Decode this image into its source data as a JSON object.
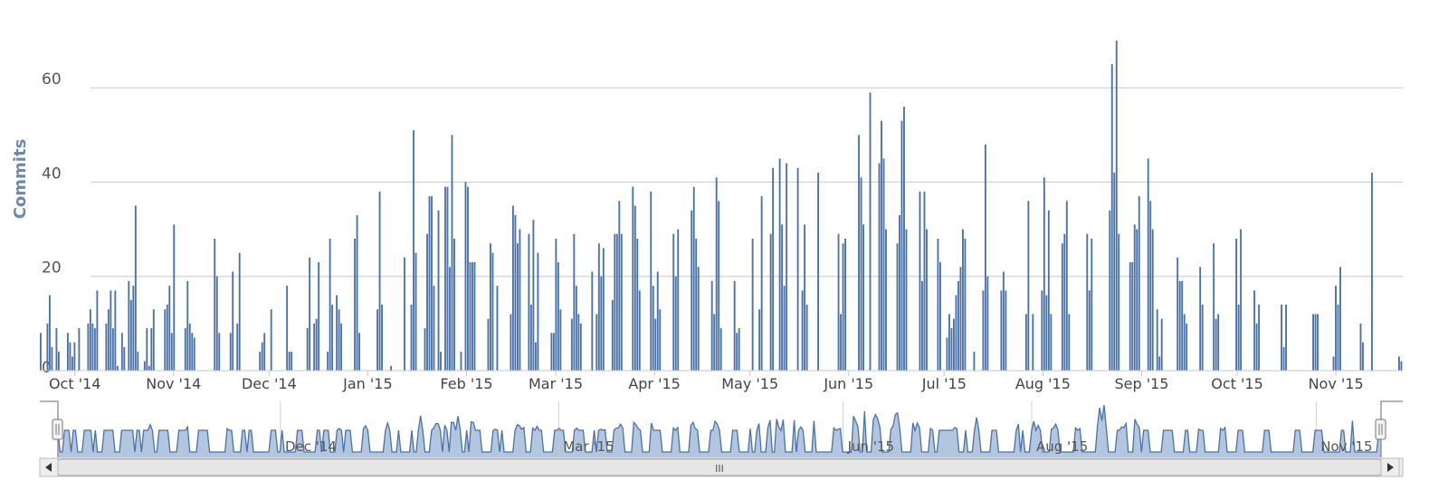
{
  "chart_data": {
    "type": "bar",
    "title": "",
    "xlabel": "",
    "ylabel": "Commits",
    "ylim": [
      0,
      70
    ],
    "yticks": [
      0,
      20,
      40,
      60
    ],
    "grid": true,
    "legend": "none",
    "color": "#4a72a8",
    "x_start": "2014-09-20",
    "x_end": "2015-11-22",
    "xticks": [
      {
        "date": "2014-10-01",
        "label": "Oct '14"
      },
      {
        "date": "2014-11-01",
        "label": "Nov '14"
      },
      {
        "date": "2014-12-01",
        "label": "Dec '14"
      },
      {
        "date": "2015-01-01",
        "label": "Jan '15"
      },
      {
        "date": "2015-02-01",
        "label": "Feb '15"
      },
      {
        "date": "2015-03-01",
        "label": "Mar '15"
      },
      {
        "date": "2015-04-01",
        "label": "Apr '15"
      },
      {
        "date": "2015-05-01",
        "label": "May '15"
      },
      {
        "date": "2015-06-01",
        "label": "Jun '15"
      },
      {
        "date": "2015-07-01",
        "label": "Jul '15"
      },
      {
        "date": "2015-08-01",
        "label": "Aug '15"
      },
      {
        "date": "2015-09-01",
        "label": "Sep '15"
      },
      {
        "date": "2015-10-01",
        "label": "Oct '15"
      },
      {
        "date": "2015-11-01",
        "label": "Nov '15"
      }
    ],
    "series": [
      {
        "values": [
          8,
          0,
          0,
          10,
          16,
          5,
          0,
          9,
          4,
          0,
          0,
          0,
          8,
          6,
          3,
          6,
          0,
          9,
          0,
          0,
          0,
          10,
          13,
          10,
          9,
          17,
          0,
          0,
          0,
          10,
          13,
          17,
          9,
          17,
          1,
          0,
          8,
          5,
          0,
          19,
          15,
          18,
          35,
          4,
          0,
          0,
          2,
          9,
          1,
          9,
          13,
          0,
          0,
          0,
          0,
          13,
          14,
          18,
          8,
          31,
          0,
          0,
          0,
          0,
          9,
          19,
          10,
          8,
          7,
          0,
          0,
          0,
          0,
          0,
          0,
          0,
          0,
          28,
          20,
          8,
          0,
          0,
          0,
          0,
          8,
          21,
          0,
          10,
          25,
          0,
          0,
          0,
          0,
          0,
          0,
          0,
          0,
          4,
          6,
          8,
          0,
          0,
          13,
          0,
          0,
          0,
          0,
          0,
          0,
          18,
          4,
          4,
          0,
          0,
          0,
          0,
          0,
          0,
          9,
          24,
          0,
          10,
          11,
          23,
          0,
          0,
          0,
          4,
          28,
          14,
          0,
          16,
          13,
          10,
          0,
          0,
          0,
          0,
          0,
          28,
          33,
          8,
          0,
          0,
          0,
          0,
          0,
          0,
          0,
          13,
          38,
          14,
          0,
          0,
          0,
          1,
          0,
          0,
          0,
          0,
          0,
          24,
          0,
          0,
          14,
          51,
          25,
          0,
          0,
          0,
          9,
          29,
          37,
          37,
          18,
          0,
          34,
          4,
          0,
          39,
          39,
          22,
          50,
          28,
          0,
          0,
          4,
          0,
          40,
          39,
          23,
          23,
          23,
          0,
          0,
          0,
          0,
          0,
          11,
          27,
          25,
          0,
          18,
          0,
          0,
          0,
          0,
          0,
          12,
          35,
          33,
          27,
          30,
          0,
          0,
          0,
          29,
          14,
          32,
          6,
          25,
          0,
          0,
          0,
          0,
          0,
          8,
          8,
          28,
          23,
          13,
          0,
          0,
          0,
          0,
          11,
          29,
          18,
          12,
          10,
          0,
          0,
          0,
          0,
          21,
          0,
          12,
          27,
          20,
          26,
          0,
          0,
          0,
          15,
          29,
          29,
          36,
          29,
          0,
          0,
          0,
          0,
          39,
          35,
          28,
          17,
          0,
          0,
          0,
          0,
          38,
          18,
          11,
          21,
          13,
          0,
          0,
          0,
          0,
          0,
          29,
          20,
          30,
          0,
          0,
          0,
          0,
          0,
          34,
          39,
          28,
          22,
          0,
          0,
          0,
          0,
          0,
          19,
          12,
          41,
          36,
          9,
          0,
          0,
          0,
          0,
          0,
          19,
          8,
          9,
          0,
          0,
          0,
          0,
          0,
          28,
          0,
          0,
          13,
          37,
          0,
          0,
          0,
          29,
          43,
          0,
          0,
          45,
          31,
          18,
          44,
          0,
          0,
          0,
          0,
          43,
          0,
          17,
          31,
          14,
          0,
          0,
          0,
          0,
          42,
          0,
          0,
          0,
          0,
          0,
          0,
          0,
          0,
          29,
          12,
          27,
          28,
          0,
          0,
          0,
          0,
          0,
          50,
          41,
          31,
          0,
          0,
          59,
          0,
          0,
          0,
          44,
          53,
          45,
          30,
          0,
          0,
          0,
          0,
          27,
          33,
          53,
          56,
          30,
          0,
          0,
          0,
          0,
          0,
          38,
          19,
          38,
          30,
          0,
          0,
          0,
          0,
          28,
          23,
          0,
          0,
          7,
          12,
          9,
          11,
          16,
          19,
          22,
          30,
          28,
          0,
          0,
          0,
          4,
          0,
          0,
          0,
          17,
          48,
          20,
          0,
          0,
          0,
          0,
          0,
          17,
          21,
          17,
          0,
          0,
          0,
          0,
          0,
          0,
          0,
          0,
          12,
          36,
          0,
          12,
          0,
          0,
          0,
          17,
          41,
          16,
          34,
          12,
          0,
          0,
          0,
          0,
          27,
          29,
          36,
          12,
          0,
          0,
          0,
          0,
          0,
          0,
          0,
          29,
          17,
          28,
          0,
          0,
          0,
          0,
          0,
          0,
          0,
          34,
          65,
          42,
          70,
          29,
          0,
          0,
          0,
          0,
          23,
          23,
          31,
          30,
          37,
          0,
          0,
          0,
          45,
          36,
          30,
          0,
          13,
          3,
          11,
          0,
          0,
          0,
          0,
          0,
          0,
          24,
          19,
          19,
          12,
          10,
          0,
          0,
          0,
          0,
          0,
          22,
          14,
          0,
          0,
          0,
          0,
          27,
          11,
          12,
          0,
          0,
          0,
          0,
          0,
          0,
          0,
          28,
          14,
          30,
          0,
          0,
          0,
          0,
          0,
          17,
          10,
          14,
          0,
          0,
          0,
          0,
          0,
          0,
          0,
          0,
          0,
          14,
          5,
          14,
          0,
          0,
          0,
          0,
          0,
          0,
          0,
          0,
          0,
          0,
          0,
          12,
          12,
          12,
          0,
          0,
          0,
          0,
          0,
          0,
          3,
          18,
          14,
          22,
          0,
          0,
          0,
          0,
          0,
          0,
          0,
          0,
          10,
          6,
          0,
          0,
          0,
          42,
          0,
          0,
          0,
          0,
          0,
          0,
          0,
          0,
          0,
          0,
          0,
          3,
          2
        ]
      }
    ]
  },
  "navigator": {
    "labels": [
      "Dec '14",
      "Mar '15",
      "Jun '15",
      "Aug '15",
      "Nov '15"
    ],
    "scrollbar_grip": "III",
    "left_arrow": "◀",
    "right_arrow": "▶"
  }
}
